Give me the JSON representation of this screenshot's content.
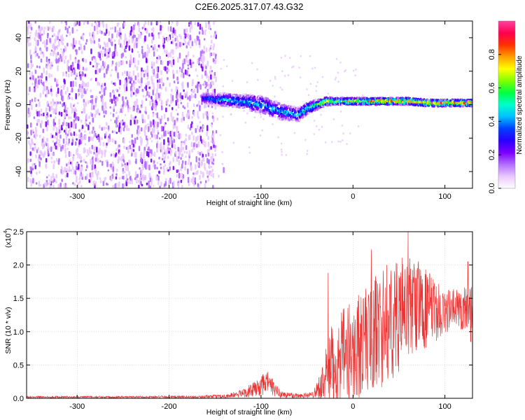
{
  "title": "C2E6.2025.317.07.43.G32",
  "chart_data": [
    {
      "type": "heatmap",
      "name": "spectrogram",
      "xlabel": "Height of straight line (km)",
      "ylabel": "Frequency (Hz)",
      "xlim": [
        -355,
        130
      ],
      "ylim": [
        -50,
        50
      ],
      "xticks": [
        -300,
        -200,
        -100,
        0,
        100
      ],
      "yticks": [
        -40,
        -20,
        0,
        20,
        40
      ],
      "colorbar": {
        "label": "Normalized spectral amplitude",
        "range": [
          0,
          1
        ],
        "ticks": [
          "0.0",
          "0.2",
          "0.4",
          "0.6",
          "0.8"
        ],
        "colors": [
          "#ffffff",
          "#e9c8ff",
          "#b36dff",
          "#7a00ff",
          "#2a00ff",
          "#0040ff",
          "#00c0ff",
          "#00ffcc",
          "#00ff40",
          "#80ff00",
          "#ffff00",
          "#ffa000",
          "#ff3000",
          "#ff0050",
          "#ff40a0"
        ]
      },
      "noise_region": {
        "x_range": [
          -355,
          -150
        ],
        "freq_range": [
          -50,
          50
        ],
        "amplitude": 0.18
      },
      "signal_band": {
        "x": [
          -165,
          -150,
          -140,
          -125,
          -110,
          -100,
          -90,
          -80,
          -70,
          -60,
          -50,
          -40,
          -30,
          -20,
          -10,
          0,
          20,
          40,
          60,
          80,
          100,
          130
        ],
        "center": [
          4,
          3,
          3,
          2,
          1,
          0,
          -2,
          -4,
          -5,
          -6,
          -2,
          0,
          2,
          2,
          2,
          2,
          2,
          2,
          2,
          1,
          1,
          1
        ],
        "width": [
          6,
          7,
          8,
          8,
          10,
          10,
          10,
          10,
          9,
          8,
          7,
          6,
          5,
          4,
          4,
          4,
          4,
          4,
          4,
          4,
          4,
          4
        ],
        "peak_amplitude": [
          0.35,
          0.4,
          0.45,
          0.45,
          0.45,
          0.45,
          0.45,
          0.45,
          0.45,
          0.5,
          0.55,
          0.6,
          0.7,
          0.75,
          0.75,
          0.8,
          0.85,
          0.85,
          0.9,
          0.9,
          0.9,
          0.9
        ]
      }
    },
    {
      "type": "line",
      "name": "snr",
      "xlabel": "Height of straight line (km)",
      "ylabel": "SNR (10 * v/v)",
      "y_multiplier": "(x10",
      "y_multiplier_exp": "4",
      "xlim": [
        -355,
        130
      ],
      "ylim": [
        0,
        2.5
      ],
      "xticks": [
        -300,
        -200,
        -100,
        0,
        100
      ],
      "yticks": [
        "0.0",
        "0.5",
        "1.0",
        "1.5",
        "2.0",
        "2.5"
      ],
      "color": "#ee3333",
      "envelope": {
        "x": [
          -355,
          -250,
          -170,
          -140,
          -125,
          -110,
          -100,
          -92,
          -85,
          -75,
          -60,
          -45,
          -38,
          -32,
          -28,
          -25,
          -20,
          -10,
          0,
          10,
          20,
          30,
          40,
          50,
          60,
          70,
          80,
          90,
          100,
          110,
          120,
          130
        ],
        "mean": [
          0.02,
          0.02,
          0.02,
          0.03,
          0.06,
          0.12,
          0.18,
          0.25,
          0.12,
          0.05,
          0.04,
          0.05,
          0.15,
          0.25,
          0.35,
          0.45,
          0.5,
          0.6,
          0.7,
          0.85,
          0.95,
          1.05,
          1.15,
          1.25,
          1.35,
          1.4,
          1.35,
          1.3,
          1.3,
          1.35,
          1.35,
          1.4
        ],
        "amp": [
          0.015,
          0.015,
          0.02,
          0.03,
          0.05,
          0.1,
          0.15,
          0.18,
          0.1,
          0.05,
          0.04,
          0.04,
          0.15,
          0.3,
          0.5,
          0.6,
          0.65,
          0.75,
          0.8,
          0.8,
          0.85,
          0.9,
          0.9,
          0.85,
          0.8,
          0.7,
          0.6,
          0.45,
          0.35,
          0.3,
          0.35,
          0.35
        ]
      },
      "spikes": [
        {
          "x": -27,
          "y": 1.88
        },
        {
          "x": 20,
          "y": 2.23
        },
        {
          "x": 60,
          "y": 2.5
        },
        {
          "x": 125,
          "y": 2.05
        },
        {
          "x": 128,
          "y": 0.85
        }
      ]
    }
  ]
}
